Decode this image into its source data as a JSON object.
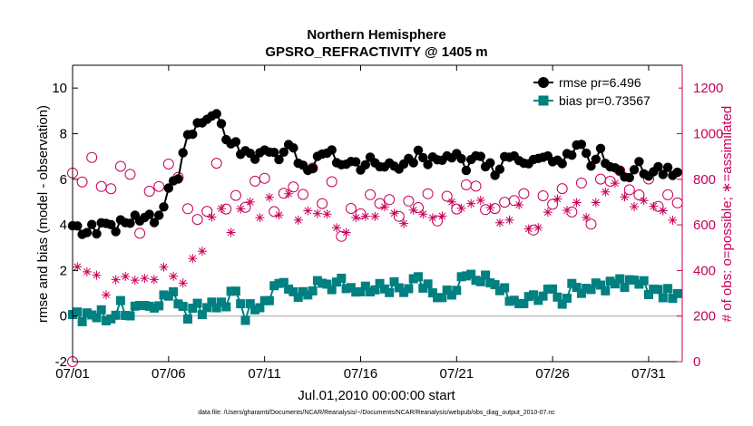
{
  "chart_data": {
    "type": "line",
    "title": "Northern Hemisphere",
    "subtitle": "GPSRO_REFRACTIVITY @ 1405 m",
    "xlabel": "Jul.01,2010 00:00:00 start",
    "ylabel_left": "rmse and bias (model - observation)",
    "ylabel_right": "# of obs: o=possible; ∗=assimilated",
    "footnote": "data file: /Users/gharamti/Documents/NCAR/Reanalysis/~/Documents/NCAR/Reanalysis/webpub/obs_diag_output_2010-07.nc",
    "xlim": [
      0,
      31.75
    ],
    "ylim_left": [
      -2,
      11
    ],
    "ylim_right": [
      0,
      1300
    ],
    "x_tick_labels": [
      "07/01",
      "07/06",
      "07/11",
      "07/16",
      "07/21",
      "07/26",
      "07/31"
    ],
    "x_tick_values": [
      0,
      5,
      10,
      15,
      20,
      25,
      30
    ],
    "y_left_ticks": [
      "-2",
      "0",
      "2",
      "4",
      "6",
      "8",
      "10"
    ],
    "y_right_ticks": [
      "0",
      "200",
      "400",
      "600",
      "800",
      "1000",
      "1200"
    ],
    "legend": [
      {
        "label": "rmse pr=6.496",
        "color": "#000000",
        "marker": "circle"
      },
      {
        "label": "bias pr=0.73567",
        "color": "#008080",
        "marker": "square"
      }
    ],
    "colors": {
      "rmse": "#000000",
      "bias": "#008080",
      "obs": "#c8005a",
      "axis_right": "#c8005a",
      "zero_line": "#b0b0b0"
    },
    "rmse_anchors": [
      [
        0,
        3.8
      ],
      [
        0.5,
        3.75
      ],
      [
        1,
        3.85
      ],
      [
        1.5,
        3.85
      ],
      [
        2,
        4.0
      ],
      [
        2.5,
        3.95
      ],
      [
        3,
        4.0
      ],
      [
        3.5,
        4.3
      ],
      [
        4,
        4.2
      ],
      [
        4.5,
        4.4
      ],
      [
        5,
        5.4
      ],
      [
        5.5,
        6.0
      ],
      [
        6,
        8.1
      ],
      [
        6.5,
        8.2
      ],
      [
        7,
        8.5
      ],
      [
        7.5,
        8.6
      ],
      [
        8,
        7.8
      ],
      [
        8.5,
        7.5
      ],
      [
        9,
        7.2
      ],
      [
        9.5,
        7.0
      ],
      [
        10,
        7.3
      ],
      [
        10.5,
        7.0
      ],
      [
        11,
        7.2
      ],
      [
        11.5,
        7.5
      ],
      [
        12,
        6.4
      ],
      [
        12.5,
        6.6
      ],
      [
        13,
        7.0
      ],
      [
        13.5,
        7.3
      ],
      [
        14,
        6.6
      ],
      [
        14.5,
        7.0
      ],
      [
        15,
        6.6
      ],
      [
        15.5,
        6.9
      ],
      [
        16,
        6.5
      ],
      [
        16.5,
        6.8
      ],
      [
        17,
        6.3
      ],
      [
        17.5,
        6.8
      ],
      [
        18,
        7.0
      ],
      [
        18.5,
        6.9
      ],
      [
        19,
        6.7
      ],
      [
        19.5,
        7.0
      ],
      [
        20,
        7.3
      ],
      [
        20.5,
        6.4
      ],
      [
        21,
        6.9
      ],
      [
        21.5,
        6.8
      ],
      [
        22,
        6.3
      ],
      [
        22.5,
        6.8
      ],
      [
        23,
        7.0
      ],
      [
        23.5,
        6.6
      ],
      [
        24,
        6.8
      ],
      [
        24.5,
        6.9
      ],
      [
        25,
        6.6
      ],
      [
        25.5,
        6.8
      ],
      [
        26,
        7.0
      ],
      [
        26.5,
        7.5
      ],
      [
        27,
        6.8
      ],
      [
        27.5,
        7.1
      ],
      [
        28,
        6.5
      ],
      [
        28.5,
        6.6
      ],
      [
        29,
        6.1
      ],
      [
        29.5,
        6.6
      ],
      [
        30,
        6.4
      ],
      [
        30.5,
        6.6
      ],
      [
        31,
        6.3
      ],
      [
        31.5,
        6.5
      ]
    ],
    "bias_anchors": [
      [
        0,
        0.2
      ],
      [
        0.5,
        -0.1
      ],
      [
        1,
        0.3
      ],
      [
        1.5,
        0.1
      ],
      [
        2,
        -0.1
      ],
      [
        2.5,
        0.4
      ],
      [
        3,
        0.0
      ],
      [
        3.5,
        0.5
      ],
      [
        4,
        0.3
      ],
      [
        4.5,
        0.6
      ],
      [
        5,
        1.1
      ],
      [
        5.5,
        0.5
      ],
      [
        6,
        0.0
      ],
      [
        6.5,
        0.3
      ],
      [
        7,
        0.2
      ],
      [
        7.5,
        0.6
      ],
      [
        8,
        0.4
      ],
      [
        8.5,
        1.2
      ],
      [
        9,
        0.0
      ],
      [
        9.5,
        0.5
      ],
      [
        10,
        0.7
      ],
      [
        10.5,
        1.2
      ],
      [
        11,
        1.6
      ],
      [
        11.5,
        1.2
      ],
      [
        12,
        1.0
      ],
      [
        12.5,
        1.3
      ],
      [
        13,
        1.6
      ],
      [
        13.5,
        1.1
      ],
      [
        14,
        1.5
      ],
      [
        14.5,
        1.0
      ],
      [
        15,
        1.2
      ],
      [
        15.5,
        0.9
      ],
      [
        16,
        1.3
      ],
      [
        16.5,
        1.1
      ],
      [
        17,
        1.4
      ],
      [
        17.5,
        1.2
      ],
      [
        18,
        1.6
      ],
      [
        18.5,
        1.3
      ],
      [
        19,
        1.0
      ],
      [
        19.5,
        1.1
      ],
      [
        20,
        1.3
      ],
      [
        20.5,
        1.7
      ],
      [
        21,
        1.4
      ],
      [
        21.5,
        1.8
      ],
      [
        22,
        1.3
      ],
      [
        22.5,
        1.0
      ],
      [
        23,
        0.8
      ],
      [
        23.5,
        0.6
      ],
      [
        24,
        1.0
      ],
      [
        24.5,
        0.8
      ],
      [
        25,
        1.1
      ],
      [
        25.5,
        0.8
      ],
      [
        26,
        1.2
      ],
      [
        26.5,
        1.0
      ],
      [
        27,
        1.4
      ],
      [
        27.5,
        1.1
      ],
      [
        28,
        1.6
      ],
      [
        28.5,
        1.8
      ],
      [
        29,
        1.3
      ],
      [
        29.5,
        1.5
      ],
      [
        30,
        1.2
      ],
      [
        30.5,
        1.0
      ],
      [
        31,
        1.1
      ],
      [
        31.5,
        0.9
      ]
    ],
    "possible_anchors": [
      [
        0,
        790
      ],
      [
        0.5,
        830
      ],
      [
        1,
        850
      ],
      [
        1.5,
        780
      ],
      [
        2,
        770
      ],
      [
        2.5,
        850
      ],
      [
        3,
        830
      ],
      [
        3.5,
        600
      ],
      [
        4,
        700
      ],
      [
        4.5,
        820
      ],
      [
        5,
        870
      ],
      [
        5.5,
        770
      ],
      [
        6,
        700
      ],
      [
        6.5,
        650
      ],
      [
        7,
        640
      ],
      [
        7.5,
        830
      ],
      [
        8,
        720
      ],
      [
        8.5,
        720
      ],
      [
        9,
        700
      ],
      [
        9.5,
        780
      ],
      [
        10,
        760
      ],
      [
        10.5,
        700
      ],
      [
        11,
        720
      ],
      [
        11.5,
        750
      ],
      [
        12,
        690
      ],
      [
        12.5,
        820
      ],
      [
        13,
        710
      ],
      [
        13.5,
        770
      ],
      [
        14,
        600
      ],
      [
        14.5,
        720
      ],
      [
        15,
        680
      ],
      [
        15.5,
        760
      ],
      [
        16,
        690
      ],
      [
        16.5,
        720
      ],
      [
        17,
        660
      ],
      [
        17.5,
        730
      ],
      [
        18,
        700
      ],
      [
        18.5,
        760
      ],
      [
        19,
        650
      ],
      [
        19.5,
        720
      ],
      [
        20,
        700
      ],
      [
        20.5,
        830
      ],
      [
        21,
        760
      ],
      [
        21.5,
        700
      ],
      [
        22,
        720
      ],
      [
        22.5,
        680
      ],
      [
        23,
        750
      ],
      [
        23.5,
        700
      ],
      [
        24,
        620
      ],
      [
        24.5,
        740
      ],
      [
        25,
        710
      ],
      [
        25.5,
        760
      ],
      [
        26,
        690
      ],
      [
        26.5,
        740
      ],
      [
        27,
        640
      ],
      [
        27.5,
        830
      ],
      [
        28,
        740
      ],
      [
        28.5,
        860
      ],
      [
        29,
        760
      ],
      [
        29.5,
        700
      ],
      [
        30,
        760
      ],
      [
        30.5,
        690
      ],
      [
        31,
        740
      ],
      [
        31.5,
        720
      ]
    ],
    "assimilated_anchors": [
      [
        0,
        380
      ],
      [
        0.5,
        390
      ],
      [
        1,
        290
      ],
      [
        1.5,
        380
      ],
      [
        2,
        300
      ],
      [
        2.5,
        370
      ],
      [
        3,
        340
      ],
      [
        3.5,
        360
      ],
      [
        4,
        310
      ],
      [
        4.5,
        420
      ],
      [
        5,
        440
      ],
      [
        5.5,
        380
      ],
      [
        6,
        390
      ],
      [
        6.5,
        460
      ],
      [
        7,
        520
      ],
      [
        7.5,
        650
      ],
      [
        8,
        590
      ],
      [
        8.5,
        650
      ],
      [
        9,
        680
      ],
      [
        9.5,
        630
      ],
      [
        10,
        700
      ],
      [
        10.5,
        650
      ],
      [
        11,
        680
      ],
      [
        11.5,
        690
      ],
      [
        12,
        620
      ],
      [
        12.5,
        720
      ],
      [
        13,
        660
      ],
      [
        13.5,
        700
      ],
      [
        14,
        560
      ],
      [
        14.5,
        660
      ],
      [
        15,
        620
      ],
      [
        15.5,
        720
      ],
      [
        16,
        640
      ],
      [
        16.5,
        690
      ],
      [
        17,
        620
      ],
      [
        17.5,
        680
      ],
      [
        18,
        650
      ],
      [
        18.5,
        710
      ],
      [
        19,
        600
      ],
      [
        19.5,
        660
      ],
      [
        20,
        640
      ],
      [
        20.5,
        740
      ],
      [
        21,
        700
      ],
      [
        21.5,
        660
      ],
      [
        22,
        680
      ],
      [
        22.5,
        630
      ],
      [
        23,
        690
      ],
      [
        23.5,
        640
      ],
      [
        24,
        570
      ],
      [
        24.5,
        680
      ],
      [
        25,
        650
      ],
      [
        25.5,
        700
      ],
      [
        26,
        640
      ],
      [
        26.5,
        680
      ],
      [
        27,
        580
      ],
      [
        27.5,
        760
      ],
      [
        28,
        680
      ],
      [
        28.5,
        780
      ],
      [
        29,
        700
      ],
      [
        29.5,
        650
      ],
      [
        30,
        700
      ],
      [
        30.5,
        640
      ],
      [
        31,
        680
      ],
      [
        31.5,
        660
      ]
    ]
  }
}
